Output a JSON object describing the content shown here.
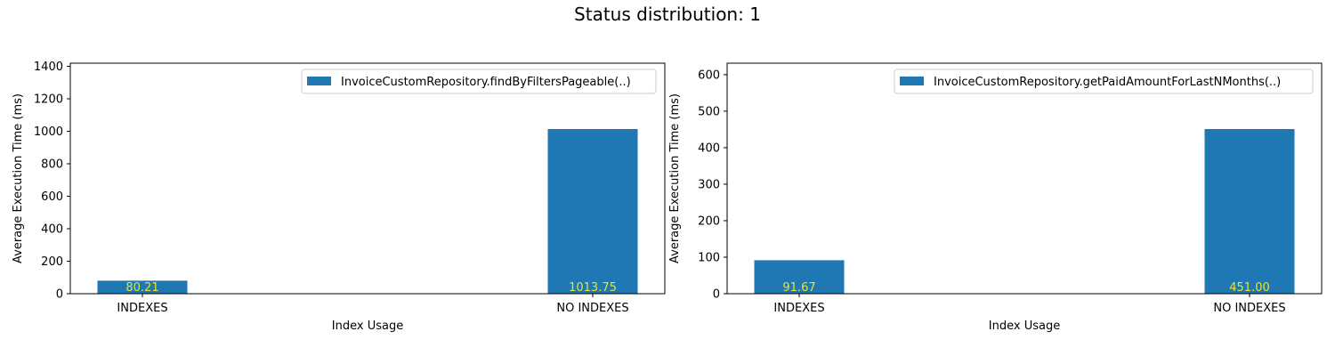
{
  "suptitle": "Status distribution: 1",
  "colors": {
    "bar": "#1f77b4",
    "data_label": "#e5e52a",
    "axis": "#000000",
    "legend_border": "#cccccc"
  },
  "chart_data": [
    {
      "type": "bar",
      "title": "",
      "categories": [
        "INDEXES",
        "NO INDEXES"
      ],
      "series": [
        {
          "name": "InvoiceCustomRepository.findByFiltersPageable(..)",
          "values": [
            80.21,
            1013.75
          ]
        }
      ],
      "data_labels": [
        "80.21",
        "1013.75"
      ],
      "xlabel": "Index Usage",
      "ylabel": "Average Execution Time (ms)",
      "ylim": [
        0,
        1419.25
      ],
      "yticks": [
        0,
        200,
        400,
        600,
        800,
        1000,
        1200,
        1400
      ],
      "grid": false,
      "legend_position": "top-right"
    },
    {
      "type": "bar",
      "title": "",
      "categories": [
        "INDEXES",
        "NO INDEXES"
      ],
      "series": [
        {
          "name": "InvoiceCustomRepository.getPaidAmountForLastNMonths(..)",
          "values": [
            91.67,
            451.0
          ]
        }
      ],
      "data_labels": [
        "91.67",
        "451.00"
      ],
      "xlabel": "Index Usage",
      "ylabel": "Average Execution Time (ms)",
      "ylim": [
        0,
        631.4
      ],
      "yticks": [
        0,
        100,
        200,
        300,
        400,
        500,
        600
      ],
      "grid": false,
      "legend_position": "top-right"
    }
  ]
}
